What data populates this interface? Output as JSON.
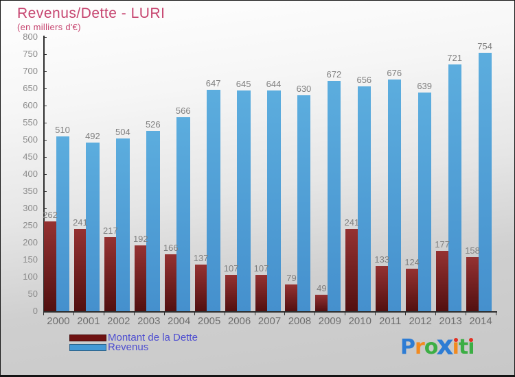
{
  "header": {
    "title": "Revenus/Dette - LURI",
    "subtitle": "(en milliers d'€)",
    "title_color": "#c6446f"
  },
  "chart_data": {
    "type": "bar",
    "title": "Revenus/Dette - LURI",
    "subtitle": "(en milliers d'€)",
    "categories": [
      "2000",
      "2001",
      "2002",
      "2003",
      "2004",
      "2005",
      "2006",
      "2007",
      "2008",
      "2009",
      "2010",
      "2011",
      "2012",
      "2013",
      "2014"
    ],
    "series": [
      {
        "name": "Montant de la Dette",
        "values": [
          262,
          241,
          217,
          192,
          166,
          137,
          107,
          107,
          79,
          49,
          241,
          133,
          124,
          177,
          158
        ],
        "color_top": "#953232",
        "color_bottom": "#521010"
      },
      {
        "name": "Revenus",
        "values": [
          510,
          492,
          504,
          526,
          566,
          647,
          645,
          644,
          630,
          672,
          656,
          676,
          639,
          721,
          754
        ],
        "color_top": "#5cadde",
        "color_bottom": "#4590cd"
      }
    ],
    "ylim": [
      0,
      800
    ],
    "ytick_step": 50,
    "grid": false,
    "value_labels": true,
    "legend_position": "bottom-left",
    "axis_color": "#2e2e2e",
    "tick_label_color": "#8a8a8a",
    "value_label_color": "#7f7f7f",
    "xlabel_color": "#6e6e6e"
  },
  "legend": {
    "items": [
      {
        "label": "Montant de la Dette",
        "color": "#6e1212"
      },
      {
        "label": "Revenus",
        "color": "#4499d6"
      }
    ],
    "text_color": "#4d4dd0"
  },
  "logo": {
    "name": "Proxiti",
    "letters": [
      {
        "ch": "P",
        "color": "#2d7cd4"
      },
      {
        "ch": "r",
        "color": "#f28a1f"
      },
      {
        "ch": "o",
        "color": "#3cae44"
      },
      {
        "ch": "x",
        "color": "#2d7cd4",
        "big": true
      },
      {
        "ch": "ı",
        "color": "#f28a1f",
        "dot": "#e33022"
      },
      {
        "ch": "t",
        "color": "#3cae44"
      },
      {
        "ch": "ı",
        "color": "#3cae44",
        "dot": "#e33022"
      }
    ]
  }
}
